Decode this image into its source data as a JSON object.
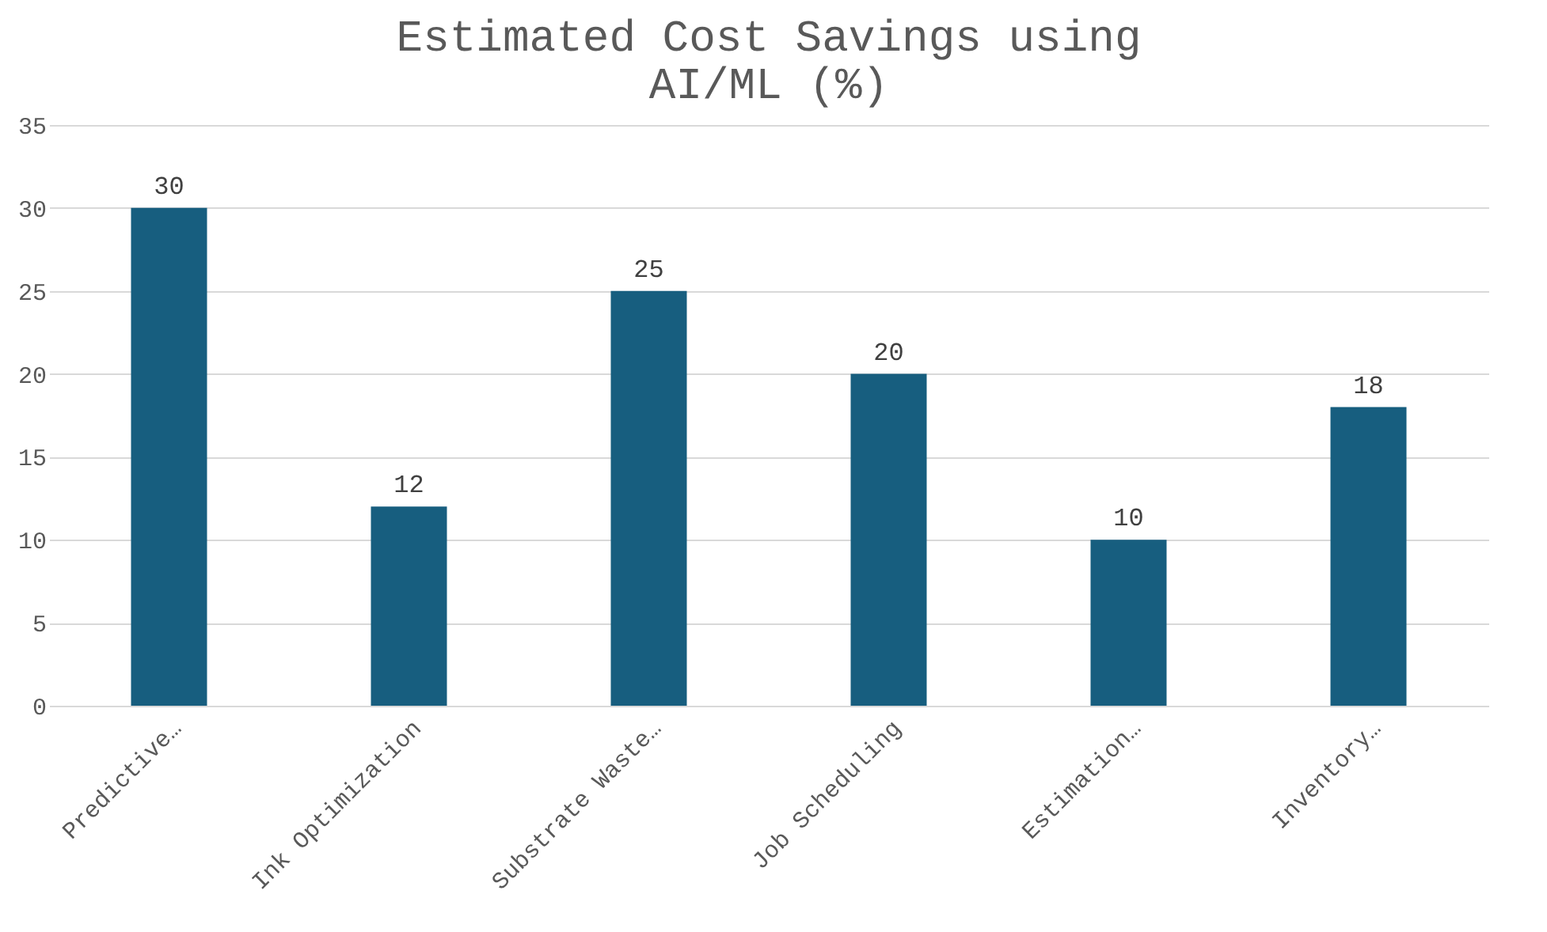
{
  "chart_data": {
    "type": "bar",
    "title": [
      "Estimated Cost Savings using",
      "AI/ML (%)"
    ],
    "categories": [
      "Predictive…",
      "Ink Optimization",
      "Substrate Waste…",
      "Job Scheduling",
      "Estimation…",
      "Inventory…"
    ],
    "values": [
      30,
      12,
      25,
      20,
      10,
      18
    ],
    "color": "#175e7f",
    "ylim": [
      0,
      35
    ],
    "yticks": [
      0,
      5,
      10,
      15,
      20,
      25,
      30,
      35
    ],
    "grid": "y",
    "data_labels": true
  }
}
